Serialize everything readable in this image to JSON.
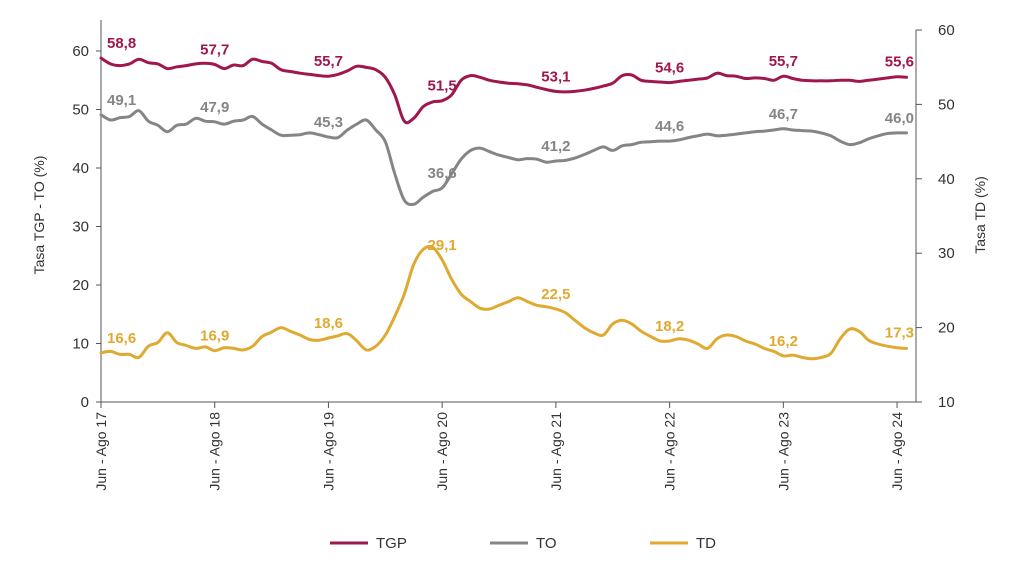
{
  "chart_data": {
    "type": "line",
    "title": "",
    "ylabel_left": "Tasa TGP - TO (%)",
    "ylabel_right": "Tasa TD (%)",
    "ylim_left": [
      0,
      65
    ],
    "yticks_left": [
      0,
      10,
      20,
      30,
      40,
      50,
      60
    ],
    "ylim_right": [
      10,
      60
    ],
    "yticks_right": [
      10,
      20,
      30,
      40,
      50,
      60
    ],
    "x_range": [
      0,
      86
    ],
    "x_ticks": [
      {
        "x": 0,
        "label": "Jun - Ago 17"
      },
      {
        "x": 12,
        "label": "Jun - Ago 18"
      },
      {
        "x": 24,
        "label": "Jun - Ago 19"
      },
      {
        "x": 36,
        "label": "Jun - Ago 20"
      },
      {
        "x": 48,
        "label": "Jun - Ago 21"
      },
      {
        "x": 60,
        "label": "Jun - Ago 22"
      },
      {
        "x": 72,
        "label": "Jun - Ago 23"
      },
      {
        "x": 84,
        "label": "Jun - Ago 24"
      }
    ],
    "legend_position": "bottom",
    "series": [
      {
        "name": "TGP",
        "axis": "left",
        "color": "#a0174f",
        "points": [
          [
            0,
            58.8
          ],
          [
            1,
            57.8
          ],
          [
            2,
            57.5
          ],
          [
            3,
            57.8
          ],
          [
            4,
            58.6
          ],
          [
            5,
            58.0
          ],
          [
            6,
            57.8
          ],
          [
            7,
            57.0
          ],
          [
            8,
            57.3
          ],
          [
            9,
            57.5
          ],
          [
            10,
            57.8
          ],
          [
            11,
            57.9
          ],
          [
            12,
            57.7
          ],
          [
            13,
            57.0
          ],
          [
            14,
            57.6
          ],
          [
            15,
            57.5
          ],
          [
            16,
            58.6
          ],
          [
            17,
            58.2
          ],
          [
            18,
            57.9
          ],
          [
            19,
            56.8
          ],
          [
            20,
            56.5
          ],
          [
            21,
            56.2
          ],
          [
            22,
            56.0
          ],
          [
            23,
            55.8
          ],
          [
            24,
            55.7
          ],
          [
            25,
            56.0
          ],
          [
            26,
            56.6
          ],
          [
            27,
            57.4
          ],
          [
            28,
            57.2
          ],
          [
            29,
            56.8
          ],
          [
            30,
            55.5
          ],
          [
            31,
            52.5
          ],
          [
            32,
            48.0
          ],
          [
            33,
            48.5
          ],
          [
            34,
            50.5
          ],
          [
            35,
            51.3
          ],
          [
            36,
            51.5
          ],
          [
            37,
            52.5
          ],
          [
            38,
            55.0
          ],
          [
            39,
            55.8
          ],
          [
            40,
            55.5
          ],
          [
            41,
            55.0
          ],
          [
            42,
            54.7
          ],
          [
            43,
            54.5
          ],
          [
            44,
            54.4
          ],
          [
            45,
            54.2
          ],
          [
            46,
            53.8
          ],
          [
            47,
            53.4
          ],
          [
            48,
            53.1
          ],
          [
            49,
            53.0
          ],
          [
            50,
            53.1
          ],
          [
            51,
            53.3
          ],
          [
            52,
            53.6
          ],
          [
            53,
            54.0
          ],
          [
            54,
            54.5
          ],
          [
            55,
            55.8
          ],
          [
            56,
            55.9
          ],
          [
            57,
            55.0
          ],
          [
            58,
            54.8
          ],
          [
            59,
            54.7
          ],
          [
            60,
            54.6
          ],
          [
            61,
            54.8
          ],
          [
            62,
            55.0
          ],
          [
            63,
            55.2
          ],
          [
            64,
            55.4
          ],
          [
            65,
            56.2
          ],
          [
            66,
            55.8
          ],
          [
            67,
            55.7
          ],
          [
            68,
            55.3
          ],
          [
            69,
            55.4
          ],
          [
            70,
            55.3
          ],
          [
            71,
            55.0
          ],
          [
            72,
            55.7
          ],
          [
            73,
            55.3
          ],
          [
            74,
            55.0
          ],
          [
            75,
            54.9
          ],
          [
            76,
            54.9
          ],
          [
            77,
            54.9
          ],
          [
            78,
            55.0
          ],
          [
            79,
            55.0
          ],
          [
            80,
            54.8
          ],
          [
            81,
            55.0
          ],
          [
            82,
            55.2
          ],
          [
            83,
            55.4
          ],
          [
            84,
            55.6
          ],
          [
            85,
            55.5
          ]
        ]
      },
      {
        "name": "TO",
        "axis": "left",
        "color": "#858585",
        "points": [
          [
            0,
            49.1
          ],
          [
            1,
            48.2
          ],
          [
            2,
            48.6
          ],
          [
            3,
            48.8
          ],
          [
            4,
            49.8
          ],
          [
            5,
            48.0
          ],
          [
            6,
            47.3
          ],
          [
            7,
            46.2
          ],
          [
            8,
            47.3
          ],
          [
            9,
            47.5
          ],
          [
            10,
            48.5
          ],
          [
            11,
            48.0
          ],
          [
            12,
            47.9
          ],
          [
            13,
            47.5
          ],
          [
            14,
            48.0
          ],
          [
            15,
            48.2
          ],
          [
            16,
            48.8
          ],
          [
            17,
            47.5
          ],
          [
            18,
            46.5
          ],
          [
            19,
            45.6
          ],
          [
            20,
            45.6
          ],
          [
            21,
            45.7
          ],
          [
            22,
            46.0
          ],
          [
            23,
            45.7
          ],
          [
            24,
            45.3
          ],
          [
            25,
            45.2
          ],
          [
            26,
            46.5
          ],
          [
            27,
            47.5
          ],
          [
            28,
            48.2
          ],
          [
            29,
            46.5
          ],
          [
            30,
            44.5
          ],
          [
            31,
            39.0
          ],
          [
            32,
            34.5
          ],
          [
            33,
            33.8
          ],
          [
            34,
            35.0
          ],
          [
            35,
            36.0
          ],
          [
            36,
            36.6
          ],
          [
            37,
            39.0
          ],
          [
            38,
            41.5
          ],
          [
            39,
            43.0
          ],
          [
            40,
            43.4
          ],
          [
            41,
            42.8
          ],
          [
            42,
            42.2
          ],
          [
            43,
            41.8
          ],
          [
            44,
            41.4
          ],
          [
            45,
            41.6
          ],
          [
            46,
            41.5
          ],
          [
            47,
            41.0
          ],
          [
            48,
            41.2
          ],
          [
            49,
            41.3
          ],
          [
            50,
            41.7
          ],
          [
            51,
            42.3
          ],
          [
            52,
            43.0
          ],
          [
            53,
            43.6
          ],
          [
            54,
            43.0
          ],
          [
            55,
            43.8
          ],
          [
            56,
            44.0
          ],
          [
            57,
            44.4
          ],
          [
            58,
            44.5
          ],
          [
            59,
            44.6
          ],
          [
            60,
            44.6
          ],
          [
            61,
            44.8
          ],
          [
            62,
            45.2
          ],
          [
            63,
            45.5
          ],
          [
            64,
            45.8
          ],
          [
            65,
            45.5
          ],
          [
            66,
            45.6
          ],
          [
            67,
            45.8
          ],
          [
            68,
            46.0
          ],
          [
            69,
            46.2
          ],
          [
            70,
            46.3
          ],
          [
            71,
            46.5
          ],
          [
            72,
            46.7
          ],
          [
            73,
            46.5
          ],
          [
            74,
            46.4
          ],
          [
            75,
            46.3
          ],
          [
            76,
            46.0
          ],
          [
            77,
            45.5
          ],
          [
            78,
            44.6
          ],
          [
            79,
            44.0
          ],
          [
            80,
            44.3
          ],
          [
            81,
            45.0
          ],
          [
            82,
            45.5
          ],
          [
            83,
            45.9
          ],
          [
            84,
            46.0
          ],
          [
            85,
            46.0
          ]
        ]
      },
      {
        "name": "TD",
        "axis": "right",
        "color": "#e0a930",
        "points": [
          [
            0,
            16.6
          ],
          [
            1,
            16.8
          ],
          [
            2,
            16.4
          ],
          [
            3,
            16.4
          ],
          [
            4,
            16.0
          ],
          [
            5,
            17.5
          ],
          [
            6,
            18.0
          ],
          [
            7,
            19.3
          ],
          [
            8,
            18.0
          ],
          [
            9,
            17.6
          ],
          [
            10,
            17.2
          ],
          [
            11,
            17.4
          ],
          [
            12,
            16.9
          ],
          [
            13,
            17.3
          ],
          [
            14,
            17.2
          ],
          [
            15,
            17.0
          ],
          [
            16,
            17.5
          ],
          [
            17,
            18.8
          ],
          [
            18,
            19.4
          ],
          [
            19,
            20.0
          ],
          [
            20,
            19.5
          ],
          [
            21,
            19.0
          ],
          [
            22,
            18.4
          ],
          [
            23,
            18.3
          ],
          [
            24,
            18.6
          ],
          [
            25,
            18.9
          ],
          [
            26,
            19.2
          ],
          [
            27,
            18.2
          ],
          [
            28,
            17.0
          ],
          [
            29,
            17.5
          ],
          [
            30,
            19.0
          ],
          [
            31,
            21.5
          ],
          [
            32,
            24.5
          ],
          [
            33,
            28.5
          ],
          [
            34,
            30.5
          ],
          [
            35,
            30.8
          ],
          [
            36,
            29.1
          ],
          [
            37,
            26.5
          ],
          [
            38,
            24.5
          ],
          [
            39,
            23.5
          ],
          [
            40,
            22.6
          ],
          [
            41,
            22.5
          ],
          [
            42,
            23.0
          ],
          [
            43,
            23.5
          ],
          [
            44,
            24.0
          ],
          [
            45,
            23.5
          ],
          [
            46,
            23.0
          ],
          [
            47,
            22.8
          ],
          [
            48,
            22.5
          ],
          [
            49,
            22.0
          ],
          [
            50,
            21.0
          ],
          [
            51,
            20.0
          ],
          [
            52,
            19.3
          ],
          [
            53,
            19.0
          ],
          [
            54,
            20.5
          ],
          [
            55,
            21.0
          ],
          [
            56,
            20.5
          ],
          [
            57,
            19.5
          ],
          [
            58,
            18.8
          ],
          [
            59,
            18.2
          ],
          [
            60,
            18.2
          ],
          [
            61,
            18.5
          ],
          [
            62,
            18.3
          ],
          [
            63,
            17.8
          ],
          [
            64,
            17.2
          ],
          [
            65,
            18.5
          ],
          [
            66,
            19.0
          ],
          [
            67,
            18.8
          ],
          [
            68,
            18.2
          ],
          [
            69,
            17.8
          ],
          [
            70,
            17.2
          ],
          [
            71,
            16.8
          ],
          [
            72,
            16.2
          ],
          [
            73,
            16.3
          ],
          [
            74,
            16.0
          ],
          [
            75,
            15.8
          ],
          [
            76,
            16.0
          ],
          [
            77,
            16.5
          ],
          [
            78,
            18.5
          ],
          [
            79,
            19.8
          ],
          [
            80,
            19.5
          ],
          [
            81,
            18.3
          ],
          [
            82,
            17.8
          ],
          [
            83,
            17.5
          ],
          [
            84,
            17.3
          ],
          [
            85,
            17.2
          ]
        ]
      }
    ],
    "data_labels": [
      {
        "series": "TGP",
        "x": 0,
        "text": "58,8"
      },
      {
        "series": "TGP",
        "x": 12,
        "text": "57,7"
      },
      {
        "series": "TGP",
        "x": 24,
        "text": "55,7"
      },
      {
        "series": "TGP",
        "x": 36,
        "text": "51,5"
      },
      {
        "series": "TGP",
        "x": 48,
        "text": "53,1"
      },
      {
        "series": "TGP",
        "x": 60,
        "text": "54,6"
      },
      {
        "series": "TGP",
        "x": 72,
        "text": "55,7"
      },
      {
        "series": "TGP",
        "x": 84,
        "text": "55,6"
      },
      {
        "series": "TO",
        "x": 0,
        "text": "49,1"
      },
      {
        "series": "TO",
        "x": 12,
        "text": "47,9"
      },
      {
        "series": "TO",
        "x": 24,
        "text": "45,3"
      },
      {
        "series": "TO",
        "x": 36,
        "text": "36,6"
      },
      {
        "series": "TO",
        "x": 48,
        "text": "41,2"
      },
      {
        "series": "TO",
        "x": 60,
        "text": "44,6"
      },
      {
        "series": "TO",
        "x": 72,
        "text": "46,7"
      },
      {
        "series": "TO",
        "x": 84,
        "text": "46,0"
      },
      {
        "series": "TD",
        "x": 0,
        "text": "16,6"
      },
      {
        "series": "TD",
        "x": 12,
        "text": "16,9"
      },
      {
        "series": "TD",
        "x": 24,
        "text": "18,6"
      },
      {
        "series": "TD",
        "x": 36,
        "text": "29,1"
      },
      {
        "series": "TD",
        "x": 48,
        "text": "22,5"
      },
      {
        "series": "TD",
        "x": 60,
        "text": "18,2"
      },
      {
        "series": "TD",
        "x": 72,
        "text": "16,2"
      },
      {
        "series": "TD",
        "x": 84,
        "text": "17,3"
      }
    ],
    "legend": [
      {
        "name": "TGP",
        "label": "TGP"
      },
      {
        "name": "TO",
        "label": "TO"
      },
      {
        "name": "TD",
        "label": "TD"
      }
    ]
  }
}
